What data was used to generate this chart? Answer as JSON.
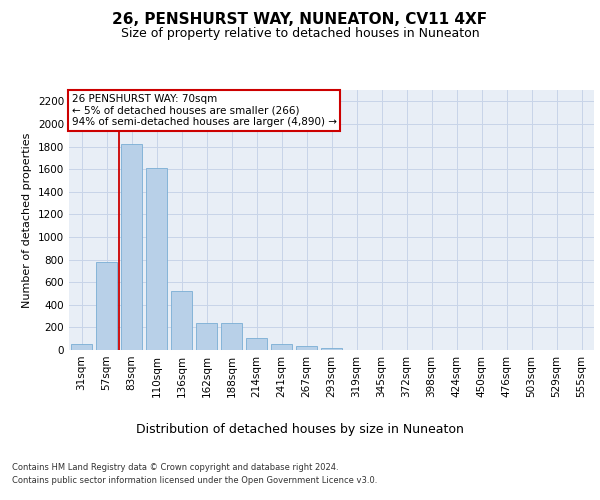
{
  "title": "26, PENSHURST WAY, NUNEATON, CV11 4XF",
  "subtitle": "Size of property relative to detached houses in Nuneaton",
  "xlabel": "Distribution of detached houses by size in Nuneaton",
  "ylabel": "Number of detached properties",
  "categories": [
    "31sqm",
    "57sqm",
    "83sqm",
    "110sqm",
    "136sqm",
    "162sqm",
    "188sqm",
    "214sqm",
    "241sqm",
    "267sqm",
    "293sqm",
    "319sqm",
    "345sqm",
    "372sqm",
    "398sqm",
    "424sqm",
    "450sqm",
    "476sqm",
    "503sqm",
    "529sqm",
    "555sqm"
  ],
  "values": [
    55,
    780,
    1820,
    1610,
    525,
    240,
    240,
    107,
    57,
    38,
    20,
    0,
    0,
    0,
    0,
    0,
    0,
    0,
    0,
    0,
    0
  ],
  "bar_color": "#b8d0e8",
  "bar_edge_color": "#7aaed4",
  "marker_line_color": "#cc0000",
  "annotation_line1": "26 PENSHURST WAY: 70sqm",
  "annotation_line2": "← 5% of detached houses are smaller (266)",
  "annotation_line3": "94% of semi-detached houses are larger (4,890) →",
  "annotation_box_edgecolor": "#cc0000",
  "ylim": [
    0,
    2300
  ],
  "yticks": [
    0,
    200,
    400,
    600,
    800,
    1000,
    1200,
    1400,
    1600,
    1800,
    2000,
    2200
  ],
  "grid_color": "#c8d4e8",
  "bg_color": "#e8eef6",
  "footer1": "Contains HM Land Registry data © Crown copyright and database right 2024.",
  "footer2": "Contains public sector information licensed under the Open Government Licence v3.0.",
  "title_fontsize": 11,
  "subtitle_fontsize": 9,
  "tick_fontsize": 7.5,
  "ylabel_fontsize": 8,
  "xlabel_fontsize": 9,
  "annotation_fontsize": 7.5,
  "footer_fontsize": 6
}
